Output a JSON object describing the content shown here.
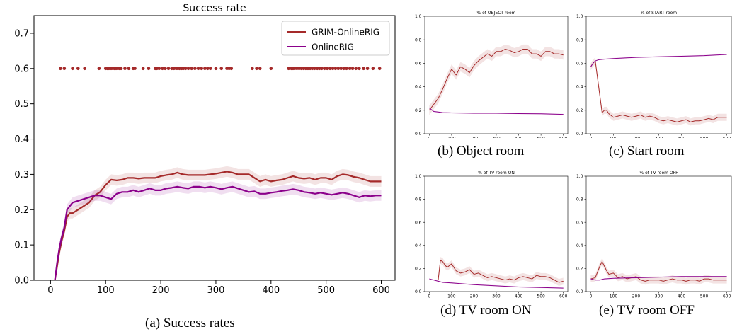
{
  "chart_data": [
    {
      "id": "a",
      "type": "line",
      "title": "Success rate",
      "caption": "(a) Success rates",
      "xlim": [
        -30,
        625
      ],
      "ylim": [
        0,
        0.75
      ],
      "xticks": [
        0,
        100,
        200,
        300,
        400,
        500,
        600
      ],
      "yticks": [
        0.0,
        0.1,
        0.2,
        0.3,
        0.4,
        0.5,
        0.6,
        0.7
      ],
      "ytick_labels": [
        "0.0",
        "0.1",
        "0.2",
        "0.3",
        "0.4",
        "0.5",
        "0.6",
        "0.7"
      ],
      "legend_position": "top-right",
      "series": [
        {
          "name": "GRIM-OnlineRIG",
          "color": "#a52a2a",
          "x": [
            8,
            12,
            16,
            20,
            25,
            30,
            35,
            40,
            50,
            60,
            70,
            80,
            90,
            100,
            110,
            120,
            130,
            140,
            150,
            160,
            170,
            180,
            190,
            200,
            210,
            220,
            230,
            240,
            250,
            260,
            270,
            280,
            290,
            300,
            310,
            320,
            330,
            340,
            350,
            360,
            370,
            380,
            390,
            400,
            410,
            420,
            430,
            440,
            450,
            460,
            470,
            480,
            490,
            500,
            510,
            520,
            530,
            540,
            550,
            560,
            570,
            580,
            590,
            600
          ],
          "y": [
            0.0,
            0.04,
            0.08,
            0.11,
            0.14,
            0.18,
            0.19,
            0.19,
            0.2,
            0.21,
            0.22,
            0.24,
            0.25,
            0.27,
            0.285,
            0.283,
            0.285,
            0.29,
            0.29,
            0.288,
            0.29,
            0.29,
            0.29,
            0.295,
            0.298,
            0.3,
            0.305,
            0.3,
            0.298,
            0.298,
            0.298,
            0.298,
            0.3,
            0.302,
            0.305,
            0.308,
            0.305,
            0.3,
            0.3,
            0.3,
            0.29,
            0.28,
            0.285,
            0.28,
            0.283,
            0.285,
            0.29,
            0.295,
            0.29,
            0.288,
            0.29,
            0.285,
            0.29,
            0.29,
            0.285,
            0.295,
            0.3,
            0.298,
            0.293,
            0.29,
            0.285,
            0.28,
            0.28,
            0.28
          ],
          "band": 0.015
        },
        {
          "name": "OnlineRIG",
          "color": "#8b008b",
          "x": [
            8,
            12,
            16,
            20,
            25,
            30,
            35,
            40,
            50,
            60,
            70,
            80,
            90,
            100,
            110,
            120,
            130,
            140,
            150,
            160,
            170,
            180,
            190,
            200,
            210,
            220,
            230,
            240,
            250,
            260,
            270,
            280,
            290,
            300,
            310,
            320,
            330,
            340,
            350,
            360,
            370,
            380,
            390,
            400,
            410,
            420,
            430,
            440,
            450,
            460,
            470,
            480,
            490,
            500,
            510,
            520,
            530,
            540,
            550,
            560,
            570,
            580,
            590,
            600
          ],
          "y": [
            0.0,
            0.05,
            0.09,
            0.12,
            0.15,
            0.2,
            0.21,
            0.22,
            0.225,
            0.23,
            0.235,
            0.24,
            0.24,
            0.235,
            0.23,
            0.245,
            0.25,
            0.25,
            0.255,
            0.25,
            0.255,
            0.26,
            0.255,
            0.255,
            0.26,
            0.262,
            0.265,
            0.262,
            0.26,
            0.265,
            0.265,
            0.262,
            0.265,
            0.262,
            0.258,
            0.262,
            0.265,
            0.26,
            0.255,
            0.25,
            0.252,
            0.245,
            0.245,
            0.248,
            0.25,
            0.253,
            0.255,
            0.258,
            0.255,
            0.25,
            0.248,
            0.245,
            0.248,
            0.245,
            0.242,
            0.245,
            0.248,
            0.245,
            0.24,
            0.235,
            0.24,
            0.238,
            0.24,
            0.24
          ],
          "band": 0.015
        }
      ],
      "scatter": {
        "color": "#a52a2a",
        "y": 0.6,
        "x": [
          18,
          25,
          40,
          50,
          62,
          88,
          100,
          103,
          106,
          110,
          113,
          116,
          119,
          122,
          125,
          128,
          135,
          142,
          150,
          153,
          168,
          178,
          190,
          193,
          197,
          203,
          208,
          214,
          220,
          224,
          228,
          231,
          234,
          238,
          241,
          245,
          250,
          256,
          262,
          268,
          274,
          280,
          285,
          290,
          300,
          310,
          320,
          324,
          328,
          366,
          374,
          380,
          400,
          432,
          437,
          440,
          443,
          447,
          451,
          455,
          459,
          463,
          467,
          471,
          475,
          479,
          484,
          488,
          492,
          497,
          502,
          507,
          512,
          517,
          522,
          527,
          532,
          537,
          543,
          548,
          554,
          560,
          568,
          575,
          585,
          597
        ]
      }
    },
    {
      "id": "b",
      "type": "line",
      "title": "% of OBJECT room",
      "caption": "(b) Object room",
      "xlim": [
        -20,
        620
      ],
      "ylim": [
        0,
        1.0
      ],
      "xticks": [
        0,
        100,
        200,
        300,
        400,
        500,
        600
      ],
      "yticks": [
        0.0,
        0.2,
        0.4,
        0.6,
        0.8,
        1.0
      ],
      "ytick_labels": [
        "0.0",
        "0.2",
        "0.4",
        "0.6",
        "0.8",
        "1.0"
      ],
      "series": [
        {
          "color": "#a52a2a",
          "x": [
            0,
            20,
            40,
            60,
            80,
            100,
            120,
            140,
            160,
            180,
            200,
            220,
            240,
            260,
            280,
            300,
            320,
            340,
            360,
            380,
            400,
            420,
            440,
            460,
            480,
            500,
            520,
            540,
            560,
            580,
            600
          ],
          "y": [
            0.2,
            0.25,
            0.3,
            0.38,
            0.47,
            0.55,
            0.5,
            0.57,
            0.55,
            0.52,
            0.58,
            0.62,
            0.65,
            0.68,
            0.66,
            0.7,
            0.7,
            0.72,
            0.71,
            0.69,
            0.7,
            0.72,
            0.72,
            0.68,
            0.68,
            0.66,
            0.7,
            0.7,
            0.68,
            0.68,
            0.67
          ],
          "band": 0.04
        },
        {
          "color": "#8b008b",
          "x": [
            0,
            20,
            40,
            60,
            100,
            200,
            300,
            400,
            500,
            600
          ],
          "y": [
            0.22,
            0.19,
            0.185,
            0.18,
            0.178,
            0.175,
            0.175,
            0.172,
            0.17,
            0.165
          ],
          "band": 0.005
        }
      ]
    },
    {
      "id": "c",
      "type": "line",
      "title": "% of START room",
      "caption": "(c) Start room",
      "xlim": [
        -20,
        620
      ],
      "ylim": [
        0,
        1.0
      ],
      "xticks": [
        0,
        100,
        200,
        300,
        400,
        500,
        600
      ],
      "yticks": [
        0.0,
        0.2,
        0.4,
        0.6,
        0.8,
        1.0
      ],
      "ytick_labels": [
        "0.0",
        "0.2",
        "0.4",
        "0.6",
        "0.8",
        "1.0"
      ],
      "series": [
        {
          "color": "#a52a2a",
          "x": [
            0,
            10,
            20,
            35,
            50,
            60,
            70,
            80,
            100,
            120,
            140,
            160,
            180,
            200,
            220,
            240,
            260,
            280,
            300,
            320,
            340,
            360,
            380,
            400,
            420,
            440,
            460,
            480,
            500,
            520,
            540,
            560,
            580,
            600
          ],
          "y": [
            0.57,
            0.6,
            0.62,
            0.4,
            0.18,
            0.2,
            0.2,
            0.17,
            0.14,
            0.15,
            0.16,
            0.15,
            0.14,
            0.15,
            0.16,
            0.14,
            0.15,
            0.14,
            0.12,
            0.11,
            0.12,
            0.11,
            0.1,
            0.11,
            0.12,
            0.1,
            0.11,
            0.11,
            0.12,
            0.13,
            0.12,
            0.14,
            0.14,
            0.14
          ],
          "band": 0.03
        },
        {
          "color": "#8b008b",
          "x": [
            0,
            10,
            20,
            35,
            60,
            100,
            200,
            300,
            400,
            500,
            600
          ],
          "y": [
            0.57,
            0.6,
            0.62,
            0.63,
            0.635,
            0.64,
            0.65,
            0.655,
            0.66,
            0.665,
            0.675
          ],
          "band": 0.005
        }
      ]
    },
    {
      "id": "d",
      "type": "line",
      "title": "% of TV room ON",
      "caption": "(d) TV room ON",
      "xlim": [
        -20,
        620
      ],
      "ylim": [
        0,
        1.0
      ],
      "xticks": [
        0,
        100,
        200,
        300,
        400,
        500,
        600
      ],
      "yticks": [
        0.0,
        0.2,
        0.4,
        0.6,
        0.8,
        1.0
      ],
      "ytick_labels": [
        "0.0",
        "0.2",
        "0.4",
        "0.6",
        "0.8",
        "1.0"
      ],
      "series": [
        {
          "color": "#a52a2a",
          "x": [
            40,
            50,
            60,
            70,
            80,
            100,
            120,
            140,
            160,
            180,
            200,
            220,
            240,
            260,
            280,
            300,
            320,
            340,
            360,
            380,
            400,
            420,
            440,
            460,
            480,
            500,
            520,
            540,
            560,
            580,
            600
          ],
          "y": [
            0.1,
            0.27,
            0.26,
            0.23,
            0.21,
            0.24,
            0.18,
            0.16,
            0.17,
            0.19,
            0.15,
            0.16,
            0.14,
            0.12,
            0.13,
            0.12,
            0.11,
            0.1,
            0.11,
            0.1,
            0.12,
            0.13,
            0.12,
            0.11,
            0.14,
            0.13,
            0.13,
            0.12,
            0.1,
            0.08,
            0.09
          ],
          "band": 0.03
        },
        {
          "color": "#8b008b",
          "x": [
            0,
            20,
            40,
            60,
            100,
            200,
            300,
            400,
            500,
            600
          ],
          "y": [
            0.11,
            0.1,
            0.09,
            0.08,
            0.075,
            0.06,
            0.05,
            0.04,
            0.035,
            0.03
          ],
          "band": 0.005
        }
      ]
    },
    {
      "id": "e",
      "type": "line",
      "title": "% of TV room OFF",
      "caption": "(e) TV room OFF",
      "xlim": [
        -20,
        620
      ],
      "ylim": [
        0,
        1.0
      ],
      "xticks": [
        0,
        100,
        200,
        300,
        400,
        500,
        600
      ],
      "yticks": [
        0.0,
        0.2,
        0.4,
        0.6,
        0.8,
        1.0
      ],
      "ytick_labels": [
        "0.0",
        "0.2",
        "0.4",
        "0.6",
        "0.8",
        "1.0"
      ],
      "series": [
        {
          "color": "#a52a2a",
          "x": [
            0,
            20,
            40,
            50,
            60,
            70,
            80,
            100,
            120,
            140,
            160,
            180,
            200,
            220,
            240,
            260,
            280,
            300,
            320,
            340,
            360,
            380,
            400,
            420,
            440,
            460,
            480,
            500,
            520,
            540,
            560,
            580,
            600
          ],
          "y": [
            0.11,
            0.12,
            0.22,
            0.26,
            0.22,
            0.18,
            0.15,
            0.16,
            0.12,
            0.13,
            0.11,
            0.12,
            0.13,
            0.1,
            0.09,
            0.1,
            0.1,
            0.1,
            0.09,
            0.1,
            0.11,
            0.1,
            0.1,
            0.09,
            0.1,
            0.1,
            0.09,
            0.11,
            0.11,
            0.1,
            0.1,
            0.1,
            0.1
          ],
          "band": 0.03
        },
        {
          "color": "#8b008b",
          "x": [
            0,
            20,
            40,
            60,
            100,
            200,
            300,
            400,
            500,
            600
          ],
          "y": [
            0.11,
            0.1,
            0.1,
            0.11,
            0.115,
            0.12,
            0.125,
            0.13,
            0.13,
            0.13
          ],
          "band": 0.005
        }
      ]
    }
  ]
}
